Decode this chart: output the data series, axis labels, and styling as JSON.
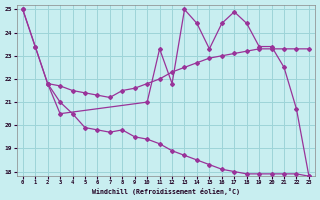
{
  "bg_color": "#c8eef0",
  "grid_color": "#9dd4d8",
  "line_color": "#993399",
  "xlim": [
    -0.5,
    23.5
  ],
  "ylim": [
    17.8,
    25.2
  ],
  "yticks": [
    18,
    19,
    20,
    21,
    22,
    23,
    24,
    25
  ],
  "xticks": [
    0,
    1,
    2,
    3,
    4,
    5,
    6,
    7,
    8,
    9,
    10,
    11,
    12,
    13,
    14,
    15,
    16,
    17,
    18,
    19,
    20,
    21,
    22,
    23
  ],
  "xlabel": "Windchill (Refroidissement éolien,°C)",
  "line1_x": [
    0,
    1,
    2,
    3,
    10,
    11,
    12,
    13,
    14,
    15,
    16,
    17,
    18,
    19,
    20,
    21,
    22,
    23
  ],
  "line1_y": [
    25,
    23.4,
    21.8,
    20.5,
    21.0,
    23.3,
    21.8,
    25.0,
    24.4,
    23.3,
    24.4,
    24.9,
    24.4,
    23.4,
    23.4,
    22.5,
    20.7,
    17.8
  ],
  "line2_x": [
    0,
    1,
    2,
    3,
    4,
    5,
    6,
    7,
    8,
    9,
    10,
    11,
    12,
    13,
    14,
    15,
    16,
    17,
    18,
    19,
    20,
    21,
    22,
    23
  ],
  "line2_y": [
    25.0,
    23.4,
    21.8,
    21.0,
    20.5,
    19.9,
    19.8,
    19.7,
    19.8,
    19.5,
    19.4,
    19.2,
    18.9,
    18.7,
    18.5,
    18.3,
    18.1,
    18.0,
    17.9,
    17.9,
    17.9,
    17.9,
    17.9,
    17.8
  ],
  "line3_x": [
    2,
    3,
    4,
    5,
    6,
    7,
    8,
    9,
    10,
    11,
    12,
    13,
    14,
    15,
    16,
    17,
    18,
    19,
    20,
    21,
    22,
    23
  ],
  "line3_y": [
    21.8,
    21.7,
    21.5,
    21.4,
    21.3,
    21.2,
    21.5,
    21.6,
    21.8,
    22.0,
    22.3,
    22.5,
    22.7,
    22.9,
    23.0,
    23.1,
    23.2,
    23.3,
    23.3,
    23.3,
    23.3,
    23.3
  ]
}
